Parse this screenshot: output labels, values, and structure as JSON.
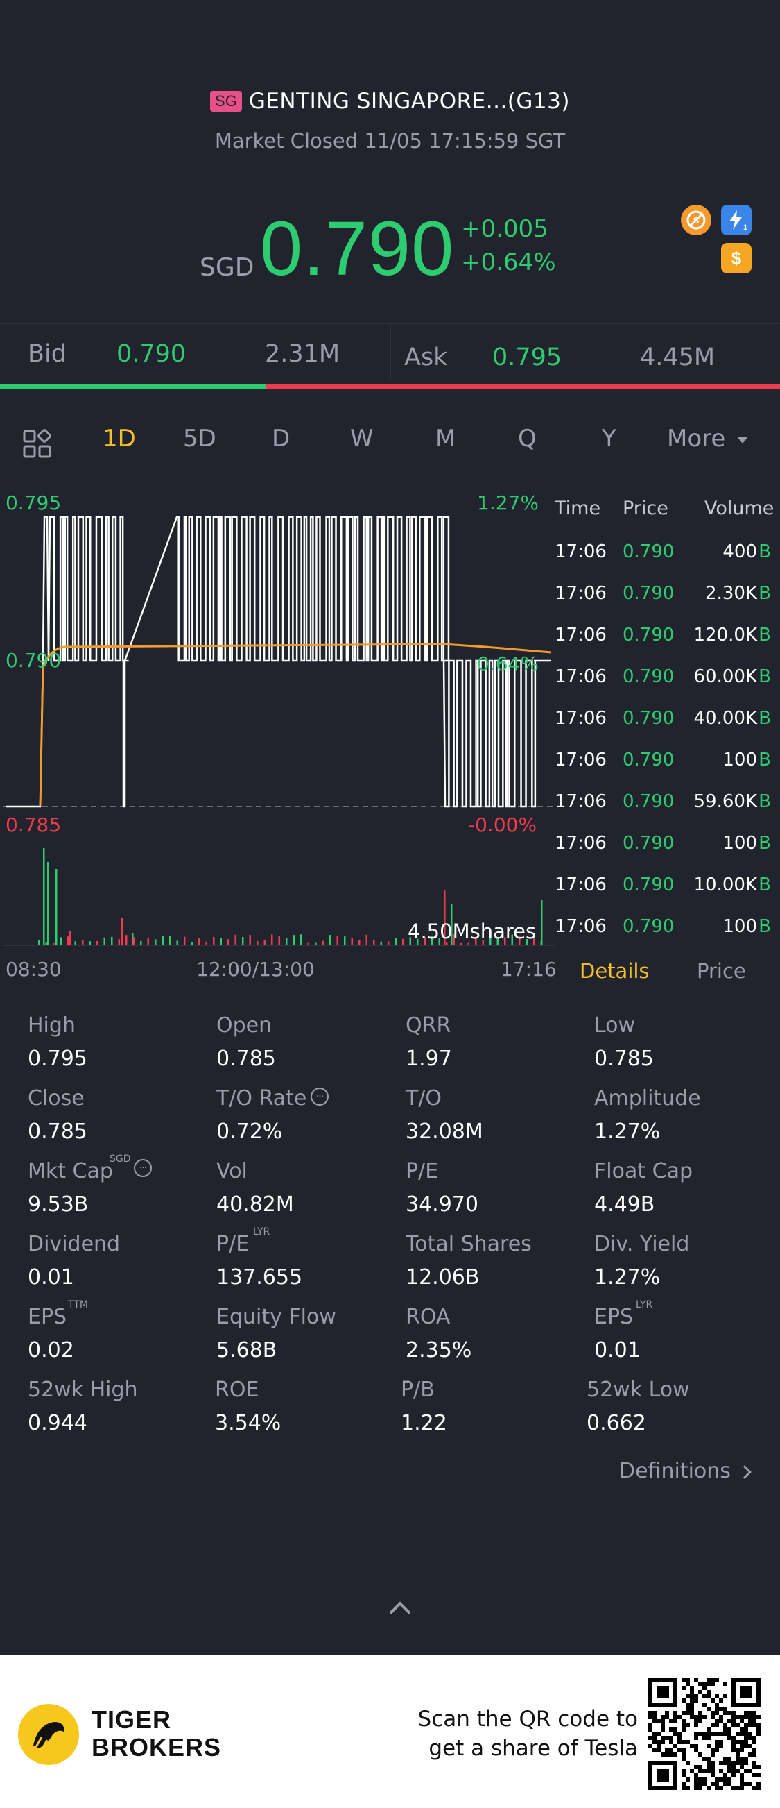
{
  "header": {
    "market_badge": "SG",
    "title": "GENTING SINGAPORE...(G13)",
    "status": "Market Closed 11/05 17:15:59 SGT"
  },
  "quote": {
    "currency": "SGD",
    "price": "0.790",
    "change": "+0.005",
    "change_pct": "+0.64%",
    "icons": [
      "no-short-icon",
      "flash-icon",
      "dollar-icon"
    ]
  },
  "bid_ask": {
    "bid_label": "Bid",
    "bid_price": "0.790",
    "bid_size": "2.31M",
    "ask_label": "Ask",
    "ask_price": "0.795",
    "ask_size": "4.45M"
  },
  "periods": [
    "1D",
    "5D",
    "D",
    "W",
    "M",
    "Q",
    "Y",
    "More"
  ],
  "active_period": "1D",
  "chart": {
    "y_top": "0.795",
    "y_mid": "0.790",
    "y_bottom": "0.785",
    "pct_top": "1.27%",
    "pct_mid": "0.64%",
    "pct_bottom": "-0.00%",
    "volume_label": "4.50Mshares",
    "x_labels": [
      "08:30",
      "12:00/13:00",
      "17:16"
    ]
  },
  "trades": {
    "headers": [
      "Time",
      "Price",
      "Volume"
    ],
    "rows": [
      {
        "time": "17:06",
        "price": "0.790",
        "volume": "400",
        "side": "B"
      },
      {
        "time": "17:06",
        "price": "0.790",
        "volume": "2.30K",
        "side": "B"
      },
      {
        "time": "17:06",
        "price": "0.790",
        "volume": "120.0K",
        "side": "B"
      },
      {
        "time": "17:06",
        "price": "0.790",
        "volume": "60.00K",
        "side": "B"
      },
      {
        "time": "17:06",
        "price": "0.790",
        "volume": "40.00K",
        "side": "B"
      },
      {
        "time": "17:06",
        "price": "0.790",
        "volume": "100",
        "side": "B"
      },
      {
        "time": "17:06",
        "price": "0.790",
        "volume": "59.60K",
        "side": "B"
      },
      {
        "time": "17:06",
        "price": "0.790",
        "volume": "100",
        "side": "B"
      },
      {
        "time": "17:06",
        "price": "0.790",
        "volume": "10.00K",
        "side": "B"
      },
      {
        "time": "17:06",
        "price": "0.790",
        "volume": "100",
        "side": "B"
      }
    ]
  },
  "tabs": {
    "details": "Details",
    "price": "Price"
  },
  "stats": [
    {
      "label": "High",
      "value": "0.795"
    },
    {
      "label": "Open",
      "value": "0.785"
    },
    {
      "label": "QRR",
      "value": "1.97"
    },
    {
      "label": "Low",
      "value": "0.785"
    },
    {
      "label": "Close",
      "value": "0.785"
    },
    {
      "label": "T/O Rate",
      "value": "0.72%"
    },
    {
      "label": "T/O",
      "value": "32.08M"
    },
    {
      "label": "Amplitude",
      "value": "1.27%"
    },
    {
      "label": "Mkt Cap",
      "value": "9.53B",
      "sup": "SGD"
    },
    {
      "label": "Vol",
      "value": "40.82M"
    },
    {
      "label": "P/E",
      "value": "34.970"
    },
    {
      "label": "Float Cap",
      "value": "4.49B"
    },
    {
      "label": "Dividend",
      "value": "0.01"
    },
    {
      "label": "P/E",
      "value": "137.655",
      "sup": "LYR"
    },
    {
      "label": "Total Shares",
      "value": "12.06B"
    },
    {
      "label": "Div. Yield",
      "value": "1.27%"
    },
    {
      "label": "EPS",
      "value": "0.02",
      "sup": "TTM"
    },
    {
      "label": "Equity Flow",
      "value": "5.68B"
    },
    {
      "label": "ROA",
      "value": "2.35%"
    },
    {
      "label": "EPS",
      "value": "0.01",
      "sup": "LYR"
    },
    {
      "label": "52wk High",
      "value": "0.944"
    },
    {
      "label": "ROE",
      "value": "3.54%"
    },
    {
      "label": "P/B",
      "value": "1.22"
    },
    {
      "label": "52wk Low",
      "value": "0.662"
    }
  ],
  "definitions_link": "Definitions",
  "footer": {
    "brand_line1": "TIGER",
    "brand_line2": "BROKERS",
    "scan_line1": "Scan the QR code to",
    "scan_line2": "get a share of Tesla"
  },
  "colors": {
    "up": "#2ecc71",
    "down": "#ee3b4d",
    "accent": "#f5c028",
    "avg_line": "#f39a2e"
  }
}
